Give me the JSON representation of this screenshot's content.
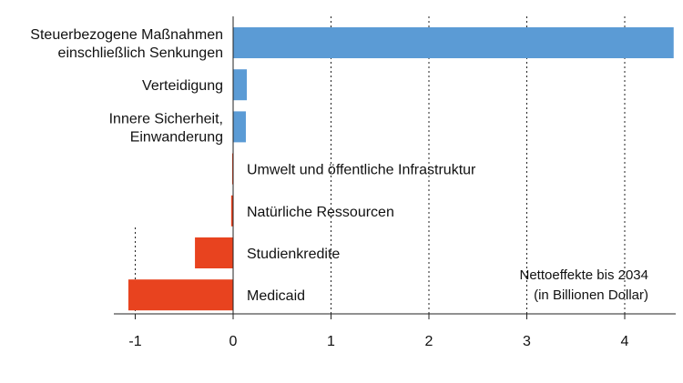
{
  "chart_data": {
    "type": "bar",
    "orientation": "horizontal",
    "categories": [
      "Steuerbezogene Maßnahmen einschließlich Senkungen",
      "Verteidigung",
      "Innere Sicherheit, Einwanderung",
      "Umwelt und öffentliche Infrastruktur",
      "Natürliche Ressourcen",
      "Studienkredite",
      "Medicaid"
    ],
    "category_lines": [
      [
        "Steuerbezogene Maßnahmen",
        "einschließlich Senkungen"
      ],
      [
        "Verteidigung"
      ],
      [
        "Innere Sicherheit,",
        "Einwanderung"
      ],
      [
        "Umwelt und öffentliche Infrastruktur"
      ],
      [
        "Natürliche Ressourcen"
      ],
      [
        "Studienkredite"
      ],
      [
        "Medicaid"
      ]
    ],
    "values": [
      4.5,
      0.14,
      0.13,
      -0.01,
      -0.02,
      -0.39,
      -1.07
    ],
    "xlim": [
      -1.2,
      4.5
    ],
    "xticks": [
      -1,
      0,
      1,
      2,
      3,
      4
    ],
    "xtick_labels": [
      "-1",
      "0",
      "1",
      "2",
      "3",
      "4"
    ],
    "grid": "vertical dotted",
    "colors": {
      "positive": "#5b9bd5",
      "negative": "#e8431f"
    },
    "annotation": [
      "Nettoeffekte bis 2034",
      "(in Billionen Dollar)"
    ],
    "title": "",
    "xlabel": "",
    "ylabel": ""
  }
}
